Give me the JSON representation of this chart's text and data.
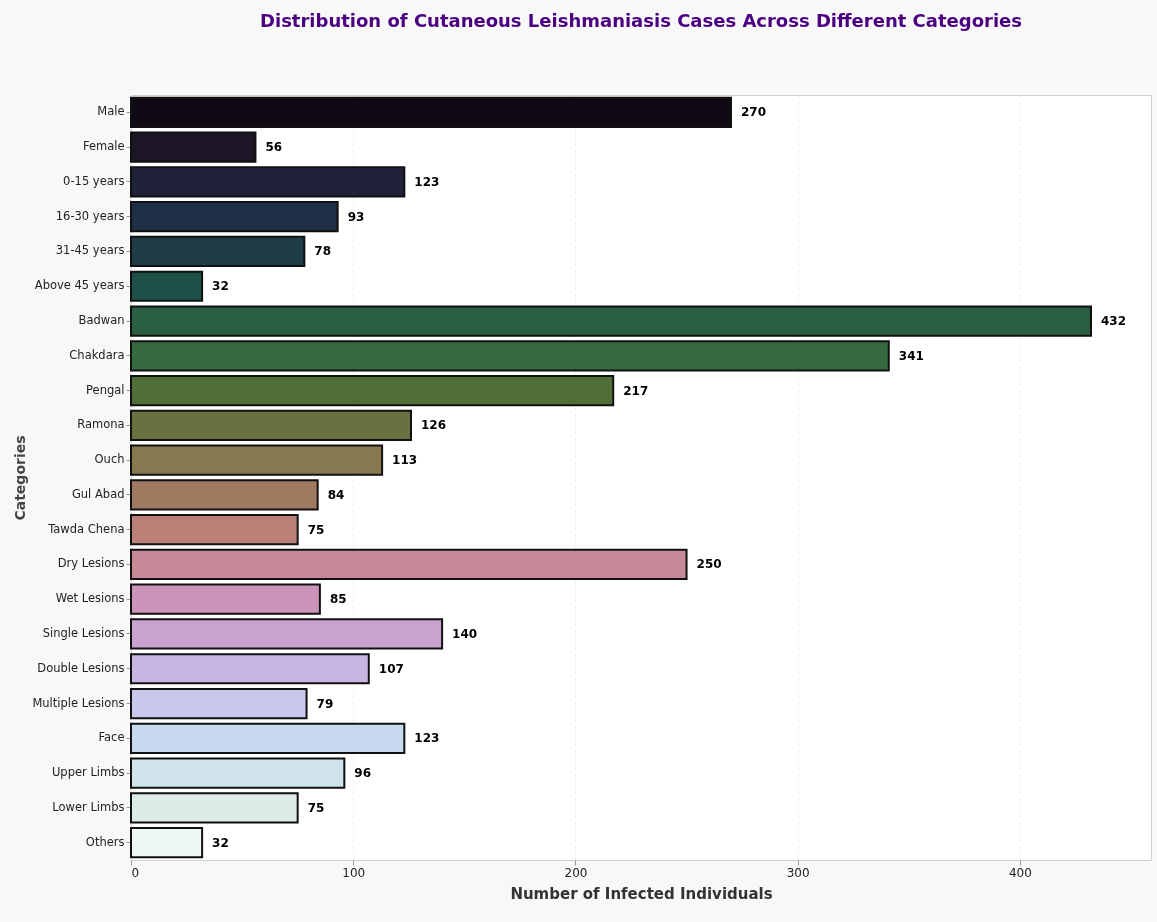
{
  "chart_data": {
    "type": "bar",
    "orientation": "horizontal",
    "title": "Distribution of Cutaneous Leishmaniasis Cases Across Different Categories",
    "xlabel": "Number of Infected Individuals",
    "ylabel": "Categories",
    "categories": [
      "Male",
      "Female",
      "0-15 years",
      "16-30 years",
      "31-45 years",
      "Above 45 years",
      "Badwan",
      "Chakdara",
      "Pengal",
      "Ramona",
      "Ouch",
      "Gul Abad",
      "Tawda Chena",
      "Dry Lesions",
      "Wet Lesions",
      "Single Lesions",
      "Double Lesions",
      "Multiple Lesions",
      "Face",
      "Upper Limbs",
      "Lower Limbs",
      "Others"
    ],
    "values": [
      270,
      56,
      123,
      93,
      78,
      32,
      432,
      341,
      217,
      126,
      113,
      84,
      75,
      250,
      85,
      140,
      107,
      79,
      123,
      96,
      75,
      32
    ],
    "colors": [
      "#0f0a14",
      "#1d1626",
      "#20223a",
      "#1f3046",
      "#1e3c46",
      "#1f5048",
      "#2a5e42",
      "#346a3e",
      "#4f6e38",
      "#6a7040",
      "#877850",
      "#a07a60",
      "#ba8078",
      "#c78898",
      "#cc94bb",
      "#c9a2d0",
      "#c8b6e2",
      "#c8c8ec",
      "#c8d8ee",
      "#cfe3ea",
      "#dcece8",
      "#eef7f2"
    ],
    "xlim": [
      0,
      459
    ],
    "xticks": [
      0,
      100,
      200,
      300,
      400
    ],
    "grid": "x",
    "data_labels": true
  }
}
